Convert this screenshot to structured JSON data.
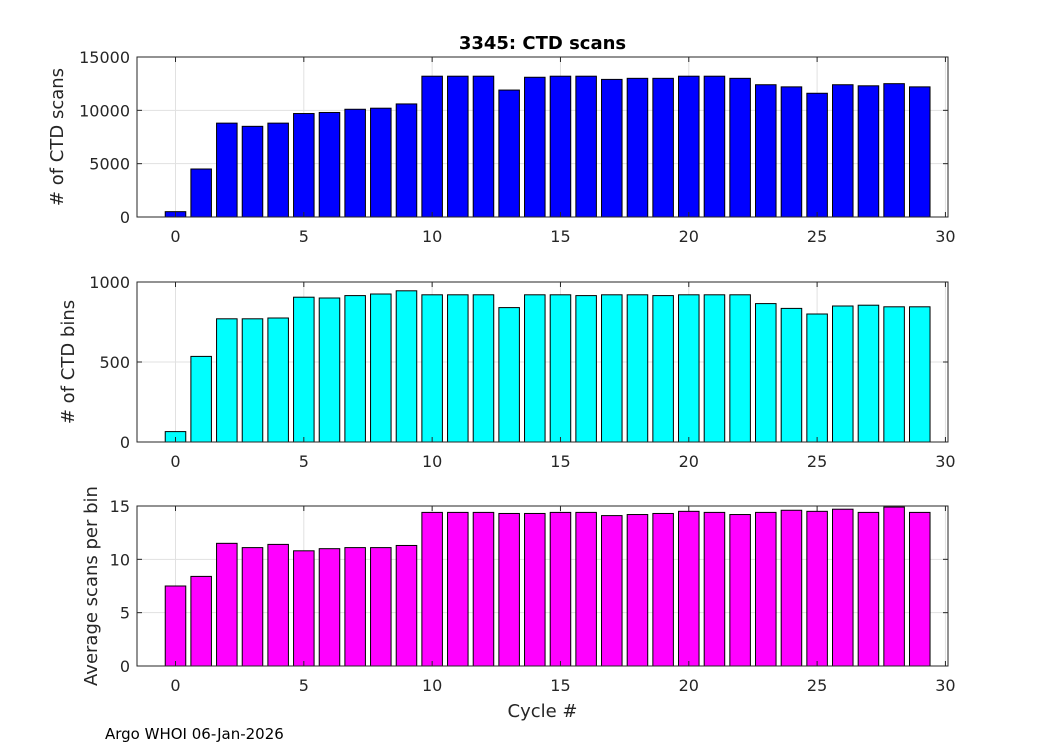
{
  "chart_data": [
    {
      "type": "bar",
      "title": "3345: CTD scans",
      "xlabel": "",
      "ylabel": "# of CTD scans",
      "xlim": [
        -1.5,
        30.1
      ],
      "ylim": [
        0,
        15000
      ],
      "xticks": [
        0,
        5,
        10,
        15,
        20,
        25,
        30
      ],
      "yticks": [
        0,
        5000,
        10000,
        15000
      ],
      "grid": true,
      "color": "#0000ff",
      "x": [
        0,
        1,
        2,
        3,
        4,
        5,
        6,
        7,
        8,
        9,
        10,
        11,
        12,
        13,
        14,
        15,
        16,
        17,
        18,
        19,
        20,
        21,
        22,
        23,
        24,
        25,
        26,
        27,
        28,
        29
      ],
      "values": [
        500,
        4500,
        8800,
        8500,
        8800,
        9700,
        9800,
        10100,
        10200,
        10600,
        13200,
        13200,
        13200,
        11900,
        13100,
        13200,
        13200,
        12900,
        13000,
        13000,
        13200,
        13200,
        13000,
        12400,
        12200,
        11600,
        12400,
        12300,
        12500,
        12200
      ]
    },
    {
      "type": "bar",
      "title": "",
      "xlabel": "",
      "ylabel": "# of CTD bins",
      "xlim": [
        -1.5,
        30.1
      ],
      "ylim": [
        0,
        1000
      ],
      "xticks": [
        0,
        5,
        10,
        15,
        20,
        25,
        30
      ],
      "yticks": [
        0,
        500,
        1000
      ],
      "grid": true,
      "color": "#00ffff",
      "x": [
        0,
        1,
        2,
        3,
        4,
        5,
        6,
        7,
        8,
        9,
        10,
        11,
        12,
        13,
        14,
        15,
        16,
        17,
        18,
        19,
        20,
        21,
        22,
        23,
        24,
        25,
        26,
        27,
        28,
        29
      ],
      "values": [
        65,
        535,
        770,
        770,
        775,
        905,
        900,
        915,
        925,
        945,
        920,
        920,
        920,
        840,
        920,
        920,
        915,
        920,
        920,
        915,
        920,
        920,
        920,
        865,
        835,
        800,
        850,
        855,
        845,
        845
      ]
    },
    {
      "type": "bar",
      "title": "",
      "xlabel": "Cycle #",
      "ylabel": "Average scans per bin",
      "xlim": [
        -1.5,
        30.1
      ],
      "ylim": [
        0,
        15
      ],
      "xticks": [
        0,
        5,
        10,
        15,
        20,
        25,
        30
      ],
      "yticks": [
        0,
        5,
        10,
        15
      ],
      "grid": true,
      "color": "#ff00ff",
      "x": [
        0,
        1,
        2,
        3,
        4,
        5,
        6,
        7,
        8,
        9,
        10,
        11,
        12,
        13,
        14,
        15,
        16,
        17,
        18,
        19,
        20,
        21,
        22,
        23,
        24,
        25,
        26,
        27,
        28,
        29
      ],
      "values": [
        7.5,
        8.4,
        11.5,
        11.1,
        11.4,
        10.8,
        11.0,
        11.1,
        11.1,
        11.3,
        14.4,
        14.4,
        14.4,
        14.3,
        14.3,
        14.4,
        14.4,
        14.1,
        14.2,
        14.3,
        14.5,
        14.4,
        14.2,
        14.4,
        14.6,
        14.5,
        14.7,
        14.4,
        14.9,
        14.4
      ]
    }
  ],
  "footer": "Argo WHOI 06-Jan-2026"
}
